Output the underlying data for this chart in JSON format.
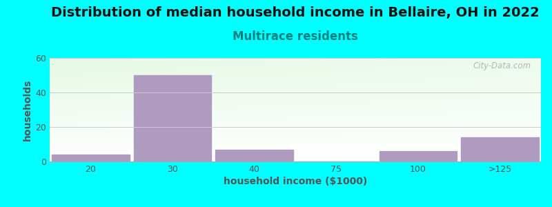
{
  "title": "Distribution of median household income in Bellaire, OH in 2022",
  "subtitle": "Multirace residents",
  "xlabel": "household income ($1000)",
  "ylabel": "households",
  "background_color": "#00FFFF",
  "bar_color": "#b09bc0",
  "categories": [
    "20",
    "30",
    "40",
    "75",
    "100",
    ">125"
  ],
  "values": [
    4,
    50,
    7,
    0,
    6,
    14
  ],
  "ylim": [
    0,
    60
  ],
  "yticks": [
    0,
    20,
    40,
    60
  ],
  "title_fontsize": 14,
  "subtitle_fontsize": 12,
  "subtitle_color": "#008080",
  "axis_label_fontsize": 10,
  "tick_fontsize": 9,
  "watermark": "City-Data.com"
}
